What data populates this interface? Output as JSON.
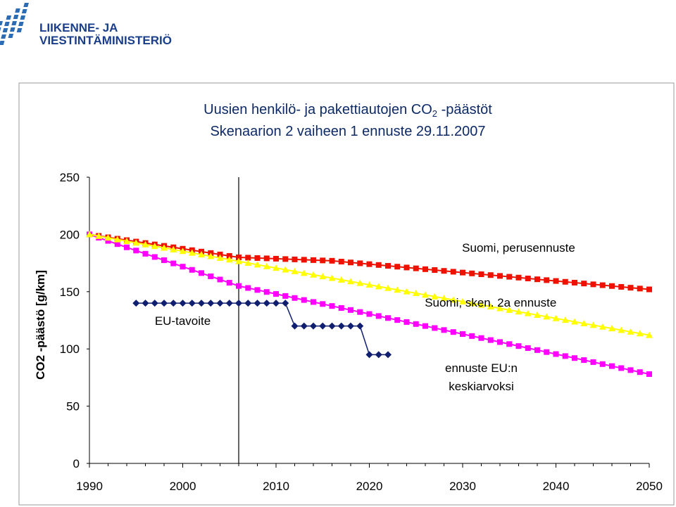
{
  "logo": {
    "line1": "LIIKENNE- JA",
    "line2": "VIESTINTÄMINISTERIÖ",
    "colors": {
      "text": "#1a3e8a",
      "mark": "#2b6cb5"
    }
  },
  "chart_data": {
    "type": "line",
    "title_main": "Uusien henkilö- ja pakettiautojen CO",
    "title_sub_2": "2",
    "title_suffix": " -päästöt",
    "subtitle": "Skenaarion 2 vaiheen 1 ennuste 29.11.2007",
    "ylabel": "CO2 -päästö [g/km]",
    "xlabel": "",
    "xlim": [
      1990,
      2050
    ],
    "ylim": [
      0,
      250
    ],
    "x_ticks": [
      "1990",
      "2000",
      "2010",
      "2020",
      "2030",
      "2040",
      "2050"
    ],
    "y_ticks": [
      "0",
      "50",
      "100",
      "150",
      "200",
      "250"
    ],
    "grid": false,
    "legend": "none",
    "reference_line_x": 2006,
    "annotations": [
      {
        "text": "Suomi, perusennuste",
        "x": 2036,
        "y": 185
      },
      {
        "text": "Suomi, sken. 2a ennuste",
        "x": 2033,
        "y": 137
      },
      {
        "text": "EU-tavoite",
        "x": 2000,
        "y": 121
      },
      {
        "text": "ennuste EU:n",
        "x": 2032,
        "y": 80
      },
      {
        "text": "keskiarvoksi",
        "x": 2032,
        "y": 64
      }
    ],
    "series": [
      {
        "key": "perus",
        "color": "#ee1100",
        "marker": "square",
        "points": [
          [
            1990,
            200
          ],
          [
            2006,
            180
          ],
          [
            2016,
            177
          ],
          [
            2050,
            152
          ]
        ]
      },
      {
        "key": "sken2a",
        "color": "#ffff00",
        "marker": "triangle",
        "points": [
          [
            1990,
            200
          ],
          [
            2050,
            112
          ]
        ]
      },
      {
        "key": "eu_avg",
        "color": "#ff00ff",
        "marker": "square",
        "points": [
          [
            1990,
            200
          ],
          [
            2006,
            155
          ],
          [
            2050,
            78
          ]
        ]
      },
      {
        "key": "eu_target",
        "color": "#0f1e6e",
        "marker": "diamond",
        "points": [
          [
            1995,
            140
          ],
          [
            2006,
            140
          ],
          [
            2011,
            140
          ],
          [
            2012,
            120
          ],
          [
            2019,
            120
          ],
          [
            2020,
            95
          ],
          [
            2022,
            95
          ]
        ]
      }
    ]
  }
}
